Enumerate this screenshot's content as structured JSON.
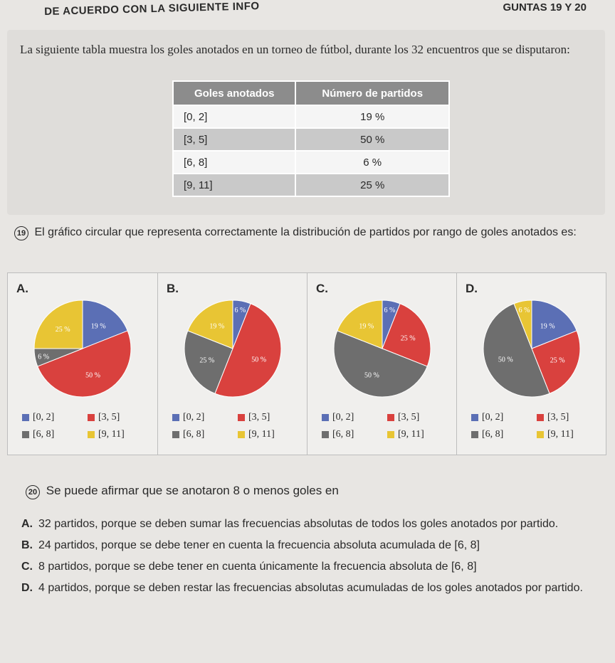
{
  "header": {
    "left": "DE ACUERDO CON LA SIGUIENTE INFO",
    "right": "GUNTAS 19 Y 20"
  },
  "intro": "La siguiente tabla muestra los goles anotados en un torneo de fútbol, durante los 32 encuentros que se disputaron:",
  "table": {
    "headers": [
      "Goles anotados",
      "Número de partidos"
    ],
    "rows": [
      {
        "range": "[0, 2]",
        "value": "19 %"
      },
      {
        "range": "[3, 5]",
        "value": "50 %"
      },
      {
        "range": "[6, 8]",
        "value": "6 %"
      },
      {
        "range": "[9, 11]",
        "value": "25 %"
      }
    ]
  },
  "q19": {
    "number": "19",
    "text": "El gráfico circular que representa correctamente la distribución de partidos por rango de goles anotados es:"
  },
  "colors": {
    "blue": "#5b6fb5",
    "red": "#d9413e",
    "gray": "#6e6e6e",
    "yellow": "#e8c534"
  },
  "legend_items": [
    {
      "label": "[0, 2]",
      "color": "#5b6fb5"
    },
    {
      "label": "[3, 5]",
      "color": "#d9413e"
    },
    {
      "label": "[6, 8]",
      "color": "#6e6e6e"
    },
    {
      "label": "[9, 11]",
      "color": "#e8c534"
    }
  ],
  "options": [
    {
      "letter": "A.",
      "slices": [
        {
          "value": 19,
          "color": "#5b6fb5",
          "label": "19 %"
        },
        {
          "value": 50,
          "color": "#d9413e",
          "label": "50 %"
        },
        {
          "value": 6,
          "color": "#6e6e6e",
          "label": "6 %"
        },
        {
          "value": 25,
          "color": "#e8c534",
          "label": "25 %"
        }
      ]
    },
    {
      "letter": "B.",
      "slices": [
        {
          "value": 6,
          "color": "#5b6fb5",
          "label": "6 %"
        },
        {
          "value": 50,
          "color": "#d9413e",
          "label": "50 %"
        },
        {
          "value": 25,
          "color": "#6e6e6e",
          "label": "25 %"
        },
        {
          "value": 19,
          "color": "#e8c534",
          "label": "19 %"
        }
      ]
    },
    {
      "letter": "C.",
      "slices": [
        {
          "value": 6,
          "color": "#5b6fb5",
          "label": "6 %"
        },
        {
          "value": 25,
          "color": "#d9413e",
          "label": "25 %"
        },
        {
          "value": 50,
          "color": "#6e6e6e",
          "label": "50 %"
        },
        {
          "value": 19,
          "color": "#e8c534",
          "label": "19 %"
        }
      ]
    },
    {
      "letter": "D.",
      "slices": [
        {
          "value": 19,
          "color": "#5b6fb5",
          "label": "19 %"
        },
        {
          "value": 25,
          "color": "#d9413e",
          "label": "25 %"
        },
        {
          "value": 50,
          "color": "#6e6e6e",
          "label": "50 %"
        },
        {
          "value": 6,
          "color": "#e8c534",
          "label": "6 %"
        }
      ]
    }
  ],
  "q20": {
    "number": "20",
    "text": "Se puede afirmar que se anotaron 8 o menos goles en"
  },
  "answers": [
    {
      "letter": "A.",
      "text": "32 partidos, porque se deben sumar las frecuencias absolutas de todos los goles anotados por partido."
    },
    {
      "letter": "B.",
      "text": "24 partidos, porque se debe tener en cuenta la frecuencia absoluta acumulada de [6, 8]"
    },
    {
      "letter": "C.",
      "text": "8 partidos, porque se debe tener en cuenta únicamente la frecuencia absoluta de [6, 8]"
    },
    {
      "letter": "D.",
      "text": "4 partidos, porque se deben restar las frecuencias absolutas acumuladas de los goles anotados por partido."
    }
  ]
}
